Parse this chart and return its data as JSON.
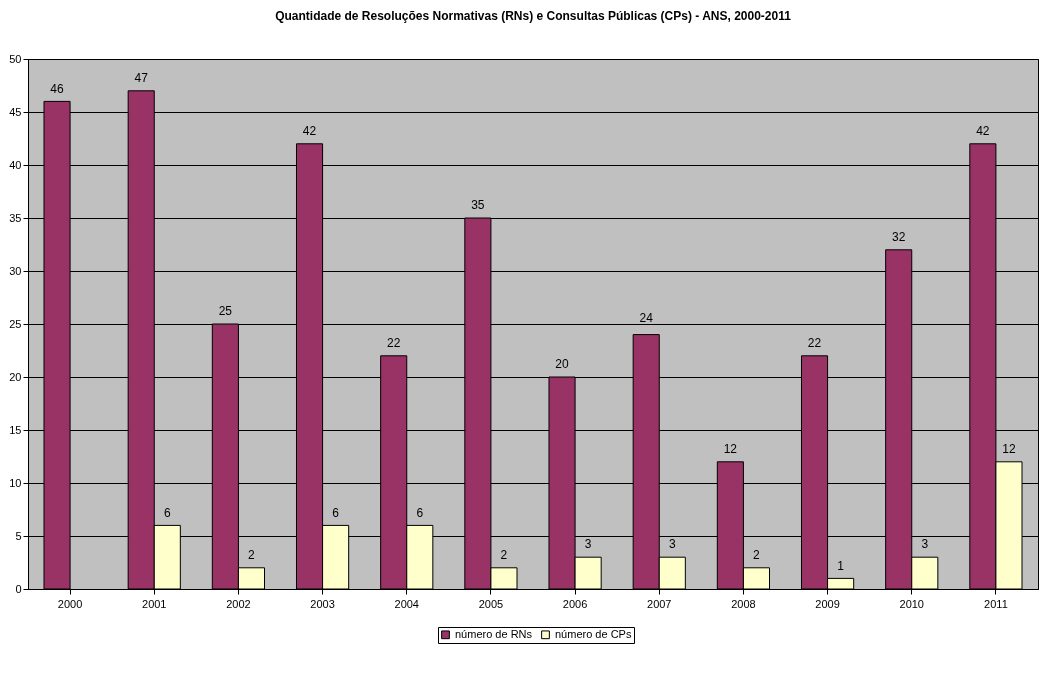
{
  "chart_data": {
    "type": "bar",
    "title": "Quantidade de Resoluções Normativas (RNs) e Consultas Públicas (CPs) - ANS, 2000-2011",
    "categories": [
      "2000",
      "2001",
      "2002",
      "2003",
      "2004",
      "2005",
      "2006",
      "2007",
      "2008",
      "2009",
      "2010",
      "2011"
    ],
    "series": [
      {
        "name": "número de RNs",
        "color": "#993366",
        "values": [
          46,
          47,
          25,
          42,
          22,
          35,
          20,
          24,
          12,
          22,
          32,
          42
        ]
      },
      {
        "name": "número de CPs",
        "color": "#ffffcc",
        "values": [
          null,
          6,
          2,
          6,
          6,
          2,
          3,
          3,
          2,
          1,
          3,
          12
        ]
      }
    ],
    "ylim": [
      0,
      50
    ],
    "yticks": [
      0,
      5,
      10,
      15,
      20,
      25,
      30,
      35,
      40,
      45,
      50
    ],
    "grid": "y",
    "legend": "bottom",
    "data_labels": true
  }
}
